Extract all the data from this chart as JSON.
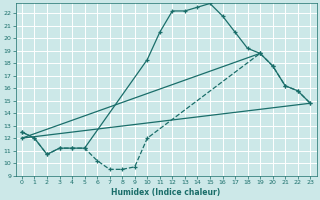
{
  "bg_color": "#cce8e8",
  "grid_color": "#ffffff",
  "line_color": "#1a6e6a",
  "xlabel": "Humidex (Indice chaleur)",
  "xlim": [
    -0.5,
    23.5
  ],
  "ylim": [
    9,
    22.8
  ],
  "xticks": [
    0,
    1,
    2,
    3,
    4,
    5,
    6,
    7,
    8,
    9,
    10,
    11,
    12,
    13,
    14,
    15,
    16,
    17,
    18,
    19,
    20,
    21,
    22,
    23
  ],
  "yticks": [
    9,
    10,
    11,
    12,
    13,
    14,
    15,
    16,
    17,
    18,
    19,
    20,
    21,
    22
  ],
  "line1_x": [
    0,
    1,
    2,
    3,
    4,
    5,
    10,
    11,
    12,
    13,
    14,
    15,
    16,
    17,
    18,
    19
  ],
  "line1_y": [
    12.5,
    12.0,
    10.7,
    11.2,
    11.2,
    11.2,
    18.3,
    20.5,
    22.2,
    22.2,
    22.5,
    22.8,
    21.8,
    20.5,
    19.2,
    18.8
  ],
  "line2_x": [
    0,
    1,
    2,
    3,
    4,
    5,
    6,
    7,
    8,
    9,
    10,
    19,
    20,
    21,
    22,
    23
  ],
  "line2_y": [
    12.5,
    12.0,
    10.7,
    11.2,
    11.2,
    11.2,
    10.2,
    9.5,
    9.5,
    9.7,
    12.0,
    18.8,
    17.8,
    16.2,
    15.8,
    14.8
  ],
  "line3_x": [
    0,
    23
  ],
  "line3_y": [
    12.0,
    14.8
  ],
  "line4_x": [
    0,
    19,
    20,
    21,
    22,
    23
  ],
  "line4_y": [
    12.0,
    18.8,
    17.8,
    16.2,
    15.8,
    14.8
  ]
}
